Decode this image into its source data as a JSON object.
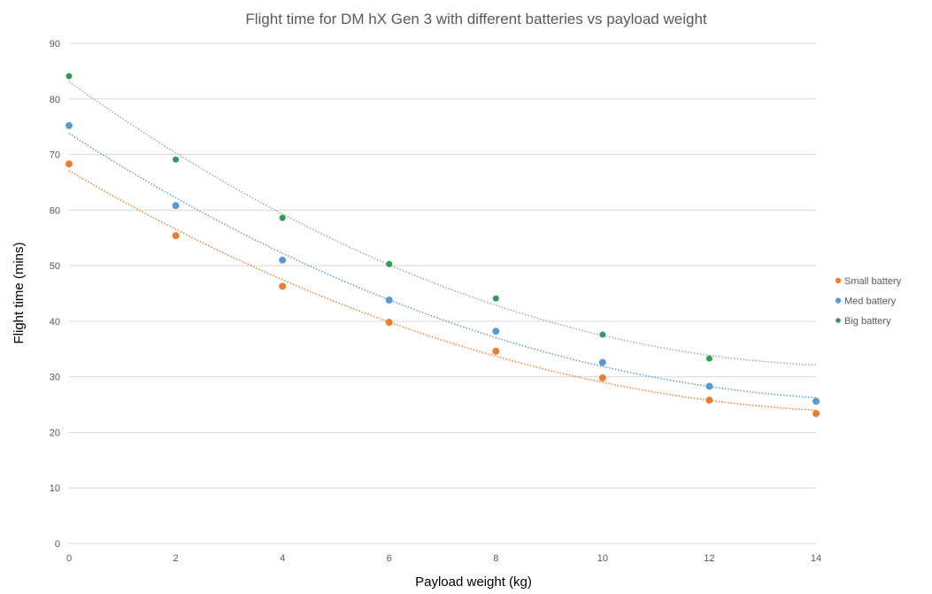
{
  "chart_data": {
    "type": "scatter",
    "title": "Flight time for DM hX Gen 3 with different batteries vs payload weight",
    "xlabel": "Payload weight (kg)",
    "ylabel": "Flight time (mins)",
    "xlim": [
      0,
      14
    ],
    "ylim": [
      0,
      90
    ],
    "xticks": [
      0,
      2,
      4,
      6,
      8,
      10,
      12,
      14
    ],
    "yticks": [
      0,
      10,
      20,
      30,
      40,
      50,
      60,
      70,
      80,
      90
    ],
    "grid": "horizontal",
    "legend_position": "right",
    "trendline": "polynomial order 2, dotted",
    "series": [
      {
        "name": "Small battery",
        "color": "#ED7D31",
        "trend_color": "#ED7D31",
        "x": [
          0,
          2,
          4,
          6,
          8,
          10,
          12,
          14
        ],
        "y": [
          68.3,
          55.4,
          46.3,
          39.8,
          34.6,
          29.8,
          25.8,
          23.4
        ]
      },
      {
        "name": "Med battery",
        "color": "#5B9BD5",
        "trend_color": "#5B9BD5",
        "x": [
          0,
          2,
          4,
          6,
          8,
          10,
          12,
          14
        ],
        "y": [
          75.2,
          60.8,
          51.0,
          43.8,
          38.2,
          32.6,
          28.3,
          25.6
        ]
      },
      {
        "name": "Big battery",
        "color": "#2E9E55",
        "trend_color": "#A5A5A5",
        "x": [
          0,
          2,
          4,
          6,
          8,
          10,
          12
        ],
        "y": [
          84.1,
          69.1,
          58.6,
          50.3,
          44.1,
          37.6,
          33.3
        ]
      }
    ]
  }
}
